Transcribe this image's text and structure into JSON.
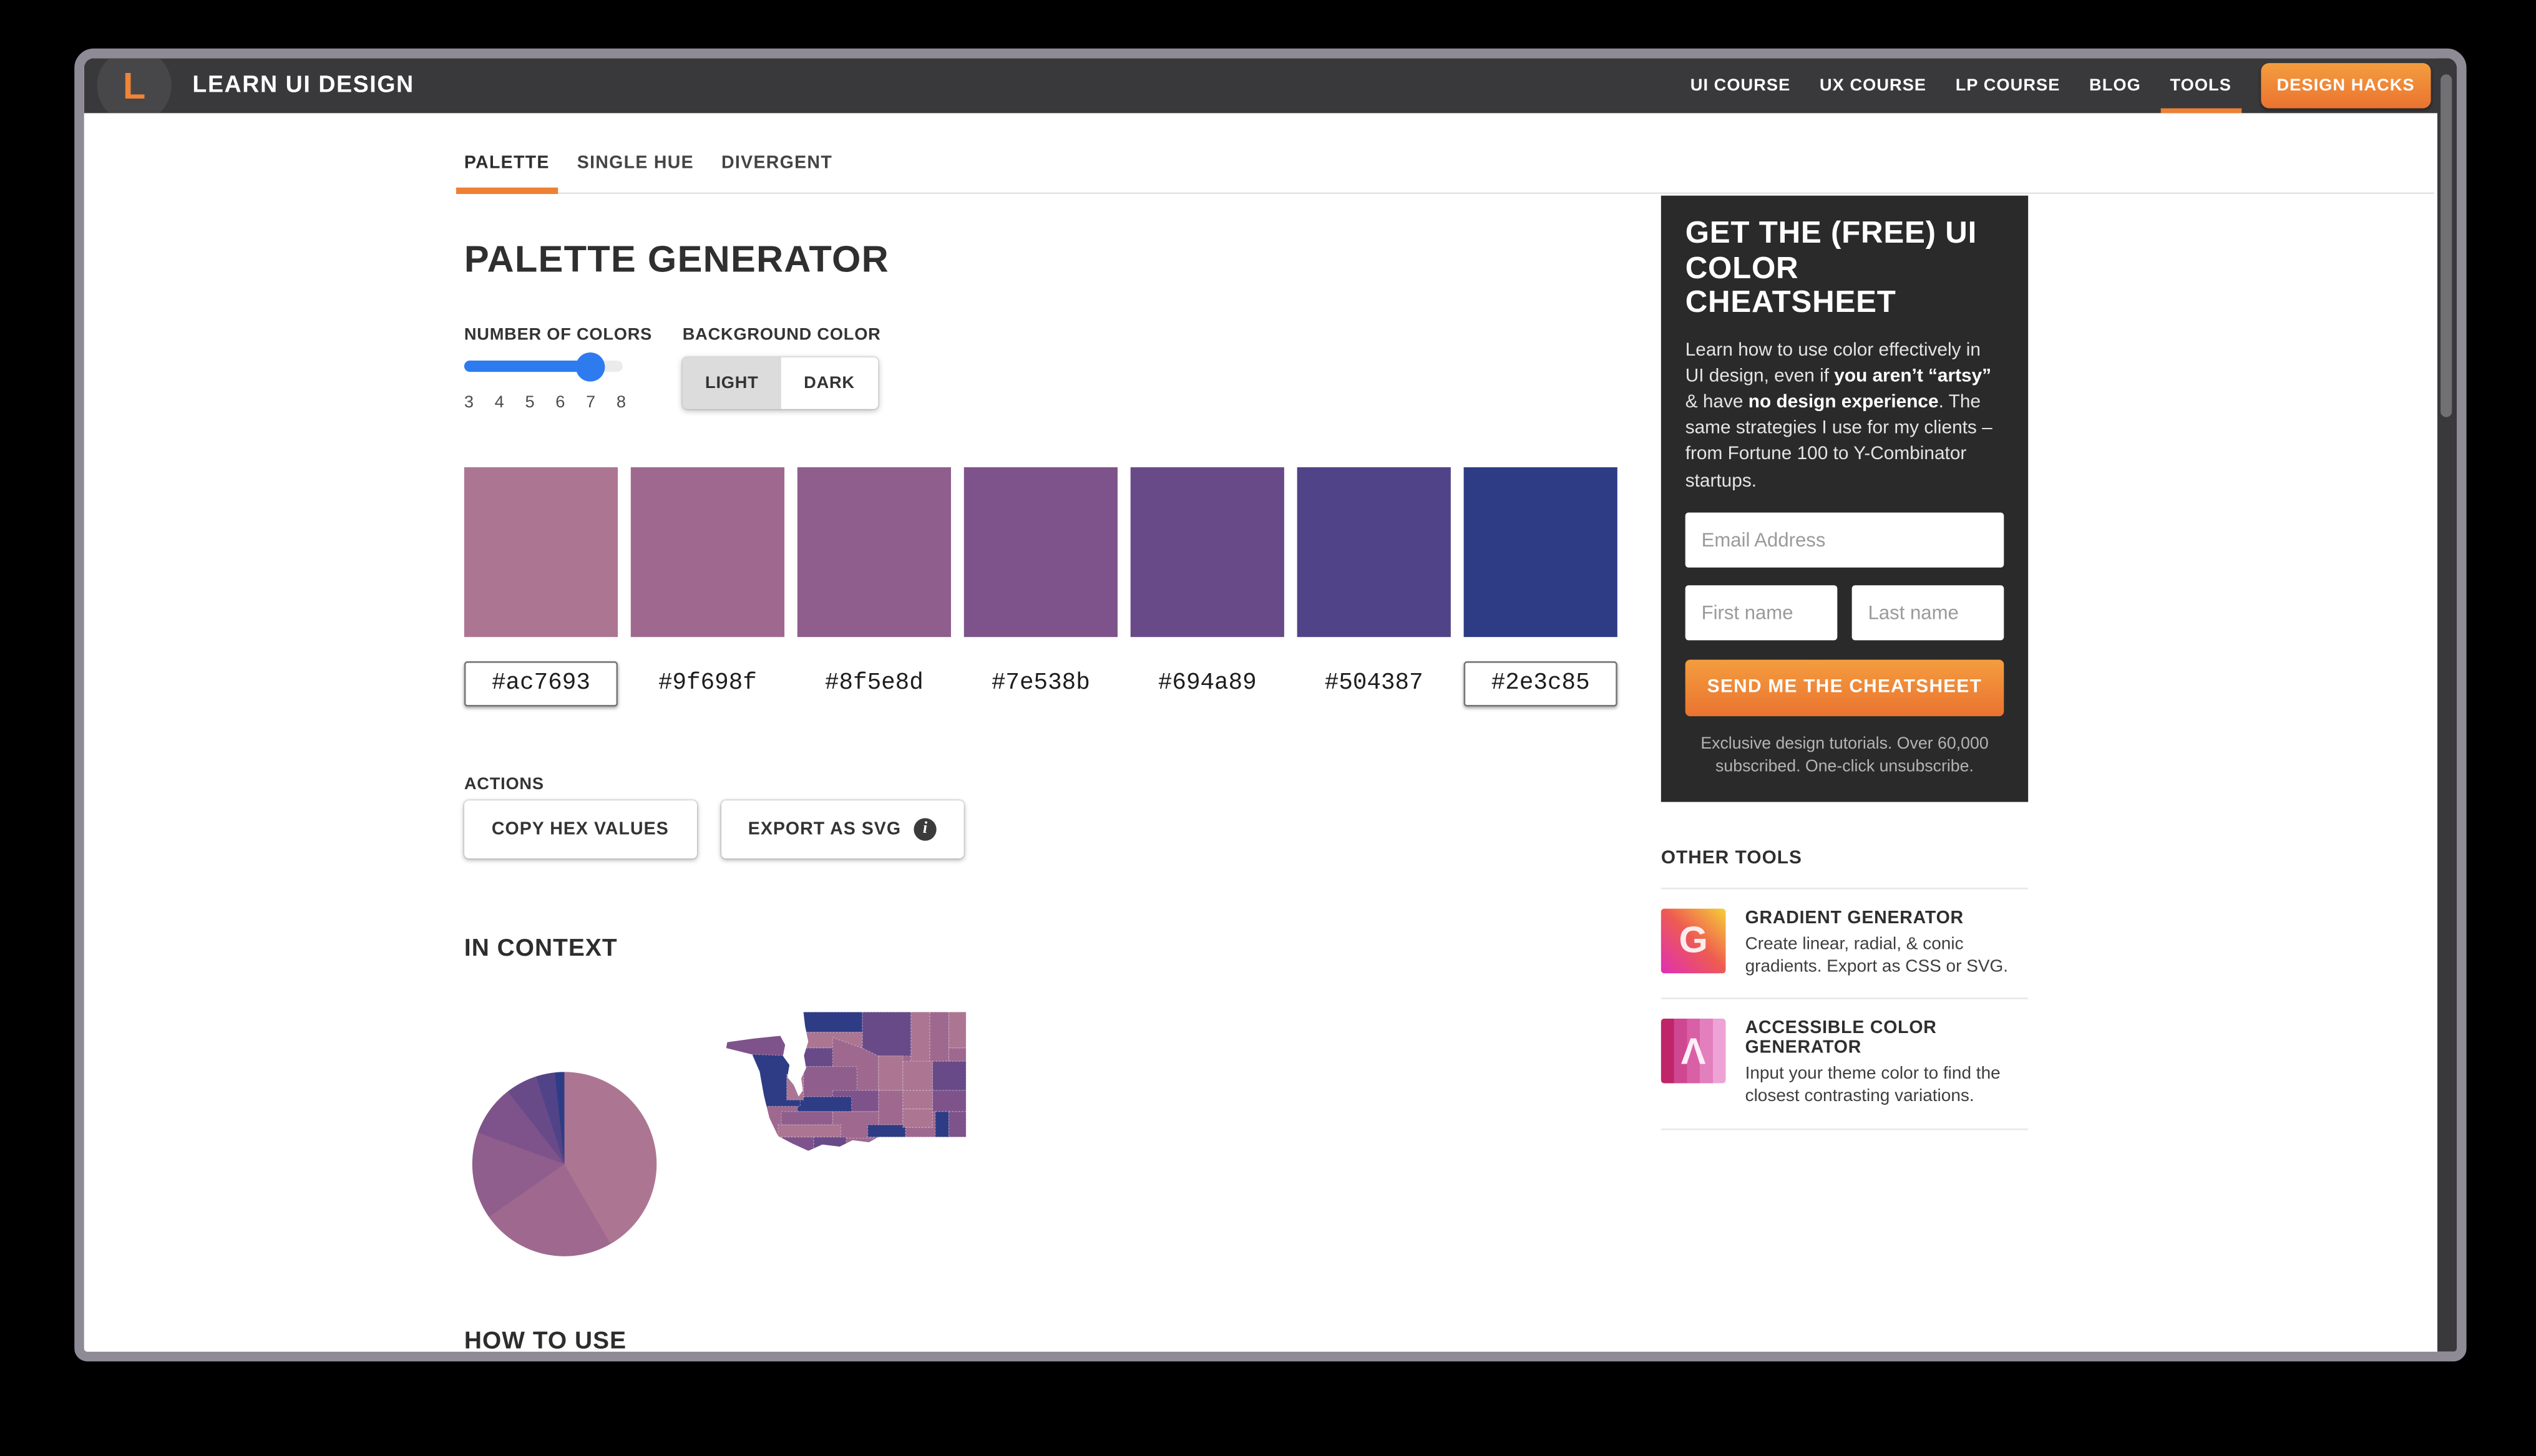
{
  "navbar": {
    "logo_letter": "L",
    "brand": "LEARN UI DESIGN",
    "links": [
      {
        "label": "UI COURSE"
      },
      {
        "label": "UX COURSE"
      },
      {
        "label": "LP COURSE"
      },
      {
        "label": "BLOG"
      },
      {
        "label": "TOOLS",
        "active": true
      },
      {
        "label": "DESIGN HACKS",
        "button": true
      }
    ]
  },
  "tabs": [
    {
      "label": "PALETTE",
      "active": true
    },
    {
      "label": "SINGLE HUE"
    },
    {
      "label": "DIVERGENT"
    }
  ],
  "generator": {
    "title": "PALETTE GENERATOR",
    "num_colors": {
      "label": "NUMBER OF COLORS",
      "min": 3,
      "max": 8,
      "value": 7,
      "ticks": [
        "3",
        "4",
        "5",
        "6",
        "7",
        "8"
      ]
    },
    "background_color": {
      "label": "BACKGROUND COLOR",
      "options": [
        "LIGHT",
        "DARK"
      ],
      "selected": "LIGHT"
    },
    "palette": [
      "#ac7693",
      "#9f698f",
      "#8f5e8d",
      "#7e538b",
      "#694a89",
      "#504387",
      "#2e3c85"
    ],
    "editable_endpoints": [
      0,
      6
    ],
    "actions": {
      "label": "ACTIONS",
      "copy_button": "COPY HEX VALUES",
      "export_button": "EXPORT AS SVG"
    }
  },
  "in_context": {
    "title": "IN CONTEXT",
    "pie": {
      "type": "pie",
      "slice_angles_deg": [
        150,
        85,
        55,
        32,
        20,
        12,
        6
      ],
      "slice_colors_follow_palette_order": true
    },
    "map": {
      "region": "Washington state county choropleth",
      "county_colors": [
        6,
        4,
        0,
        1,
        0,
        1,
        0,
        4,
        1,
        0,
        0,
        4,
        2,
        3,
        1,
        0,
        3,
        6,
        1,
        6,
        0,
        1,
        6,
        3,
        3,
        6,
        0,
        2,
        0,
        3,
        4
      ]
    }
  },
  "how_to_use": {
    "title": "HOW TO USE"
  },
  "sidebar": {
    "cheatsheet": {
      "title": "GET THE (FREE) UI COLOR CHEATSHEET",
      "body": [
        {
          "text": "Learn how to use color effectively in UI design, even if ",
          "bold": false
        },
        {
          "text": "you aren’t “artsy”",
          "bold": true
        },
        {
          "text": " & have ",
          "bold": false
        },
        {
          "text": "no design experience",
          "bold": true
        },
        {
          "text": ". The same strategies I use for my clients – from Fortune 100 to Y-Combinator startups.",
          "bold": false
        }
      ],
      "email_placeholder": "Email Address",
      "first_name_placeholder": "First name",
      "last_name_placeholder": "Last name",
      "submit_label": "SEND ME THE CHEATSHEET",
      "footnote": "Exclusive design tutorials. Over 60,000 subscribed. One-click unsubscribe."
    },
    "other_tools": {
      "title": "OTHER TOOLS",
      "items": [
        {
          "icon": "gradient",
          "icon_letter": "G",
          "title": "GRADIENT GENERATOR",
          "description": "Create linear, radial, & conic gradients. Export as CSS or SVG."
        },
        {
          "icon": "stripes",
          "icon_letter": "Λ",
          "title": "ACCESSIBLE COLOR GENERATOR",
          "description": "Input your theme color to find the closest contrasting variations."
        }
      ]
    }
  },
  "colors": {
    "accent_orange": "#ee8035",
    "navbar_bg": "#39393b",
    "slider_blue": "#2e7bf0",
    "cheatsheet_bg": "#2a2a2b",
    "window_frame": "#8f8b96"
  }
}
